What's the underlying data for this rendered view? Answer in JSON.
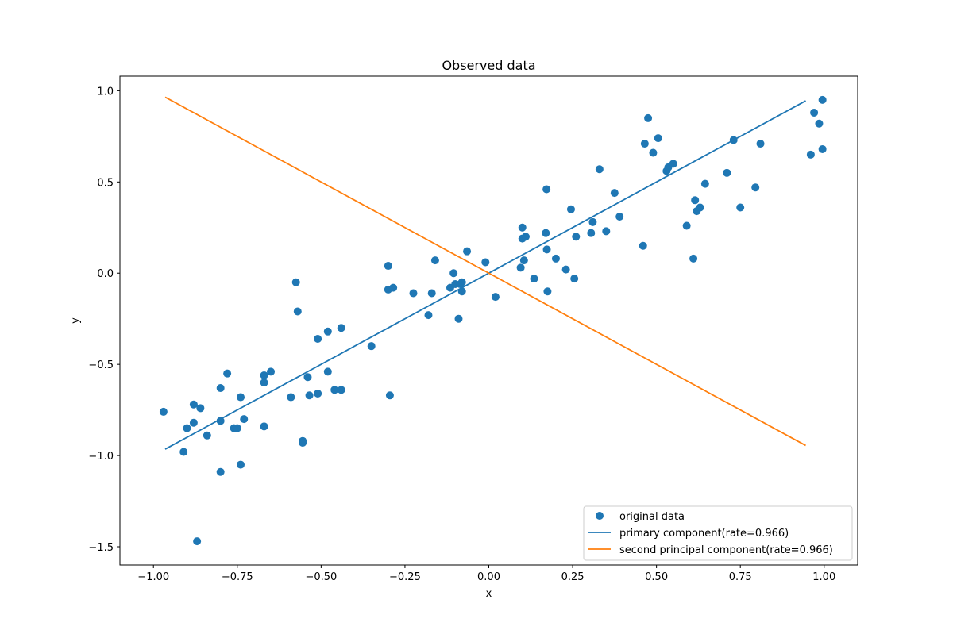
{
  "chart_data": {
    "type": "scatter",
    "title": "Observed data",
    "xlabel": "x",
    "ylabel": "y",
    "xlim": [
      -1.1,
      1.1
    ],
    "ylim": [
      -1.6,
      1.08
    ],
    "x_ticks": [
      -1.0,
      -0.75,
      -0.5,
      -0.25,
      0.0,
      0.25,
      0.5,
      0.75,
      1.0
    ],
    "x_tick_labels": [
      "−1.00",
      "−0.75",
      "−0.50",
      "−0.25",
      "0.00",
      "0.25",
      "0.50",
      "0.75",
      "1.00"
    ],
    "y_ticks": [
      1.0,
      0.5,
      0.0,
      -0.5,
      -1.0,
      -1.5
    ],
    "y_tick_labels": [
      "1.0",
      "0.5",
      "0.0",
      "−0.5",
      "−1.0",
      "−1.5"
    ],
    "grid": false,
    "legend_position": "bottom-right",
    "series": [
      {
        "name": "original data",
        "kind": "scatter",
        "color": "#1f77b4",
        "points": [
          [
            -0.97,
            -0.76
          ],
          [
            -0.91,
            -0.98
          ],
          [
            -0.9,
            -0.85
          ],
          [
            -0.88,
            -0.72
          ],
          [
            -0.88,
            -0.82
          ],
          [
            -0.87,
            -1.47
          ],
          [
            -0.86,
            -0.74
          ],
          [
            -0.84,
            -0.89
          ],
          [
            -0.8,
            -0.63
          ],
          [
            -0.8,
            -0.81
          ],
          [
            -0.8,
            -1.09
          ],
          [
            -0.78,
            -0.55
          ],
          [
            -0.76,
            -0.85
          ],
          [
            -0.75,
            -0.85
          ],
          [
            -0.74,
            -0.68
          ],
          [
            -0.74,
            -1.05
          ],
          [
            -0.73,
            -0.8
          ],
          [
            -0.67,
            -0.6
          ],
          [
            -0.67,
            -0.56
          ],
          [
            -0.67,
            -0.84
          ],
          [
            -0.65,
            -0.54
          ],
          [
            -0.59,
            -0.68
          ],
          [
            -0.575,
            -0.05
          ],
          [
            -0.57,
            -0.21
          ],
          [
            -0.555,
            -0.92
          ],
          [
            -0.555,
            -0.93
          ],
          [
            -0.54,
            -0.57
          ],
          [
            -0.535,
            -0.67
          ],
          [
            -0.51,
            -0.36
          ],
          [
            -0.51,
            -0.66
          ],
          [
            -0.48,
            -0.32
          ],
          [
            -0.48,
            -0.54
          ],
          [
            -0.46,
            -0.64
          ],
          [
            -0.44,
            -0.3
          ],
          [
            -0.44,
            -0.64
          ],
          [
            -0.35,
            -0.4
          ],
          [
            -0.3,
            0.04
          ],
          [
            -0.3,
            -0.09
          ],
          [
            -0.295,
            -0.67
          ],
          [
            -0.285,
            -0.08
          ],
          [
            -0.225,
            -0.11
          ],
          [
            -0.18,
            -0.23
          ],
          [
            -0.17,
            -0.11
          ],
          [
            -0.16,
            0.07
          ],
          [
            -0.115,
            -0.08
          ],
          [
            -0.105,
            0.0
          ],
          [
            -0.1,
            -0.06
          ],
          [
            -0.09,
            -0.25
          ],
          [
            -0.085,
            -0.06
          ],
          [
            -0.08,
            -0.05
          ],
          [
            -0.08,
            -0.1
          ],
          [
            -0.065,
            0.12
          ],
          [
            -0.01,
            0.06
          ],
          [
            0.02,
            -0.13
          ],
          [
            0.095,
            0.03
          ],
          [
            0.1,
            0.25
          ],
          [
            0.1,
            0.19
          ],
          [
            0.105,
            0.07
          ],
          [
            0.11,
            0.2
          ],
          [
            0.135,
            -0.03
          ],
          [
            0.17,
            0.22
          ],
          [
            0.172,
            0.46
          ],
          [
            0.173,
            0.13
          ],
          [
            0.175,
            -0.1
          ],
          [
            0.2,
            0.08
          ],
          [
            0.23,
            0.02
          ],
          [
            0.245,
            0.35
          ],
          [
            0.255,
            -0.03
          ],
          [
            0.26,
            0.2
          ],
          [
            0.305,
            0.22
          ],
          [
            0.31,
            0.28
          ],
          [
            0.33,
            0.57
          ],
          [
            0.35,
            0.23
          ],
          [
            0.375,
            0.44
          ],
          [
            0.39,
            0.31
          ],
          [
            0.46,
            0.15
          ],
          [
            0.465,
            0.71
          ],
          [
            0.475,
            0.85
          ],
          [
            0.49,
            0.66
          ],
          [
            0.505,
            0.74
          ],
          [
            0.53,
            0.56
          ],
          [
            0.535,
            0.58
          ],
          [
            0.55,
            0.6
          ],
          [
            0.59,
            0.26
          ],
          [
            0.61,
            0.08
          ],
          [
            0.615,
            0.4
          ],
          [
            0.62,
            0.34
          ],
          [
            0.63,
            0.36
          ],
          [
            0.645,
            0.49
          ],
          [
            0.71,
            0.55
          ],
          [
            0.73,
            0.73
          ],
          [
            0.75,
            0.36
          ],
          [
            0.795,
            0.47
          ],
          [
            0.81,
            0.71
          ],
          [
            0.96,
            0.65
          ],
          [
            0.97,
            0.88
          ],
          [
            0.985,
            0.82
          ],
          [
            0.995,
            0.95
          ],
          [
            0.995,
            0.68
          ]
        ]
      },
      {
        "name": "primary component(rate=0.966)",
        "kind": "line",
        "color": "#1f77b4",
        "points": [
          [
            -0.965,
            -0.965
          ],
          [
            0.945,
            0.945
          ]
        ]
      },
      {
        "name": "second principal component(rate=0.966)",
        "kind": "line",
        "color": "#ff7f0e",
        "points": [
          [
            -0.965,
            0.965
          ],
          [
            0.945,
            -0.945
          ]
        ]
      }
    ]
  }
}
